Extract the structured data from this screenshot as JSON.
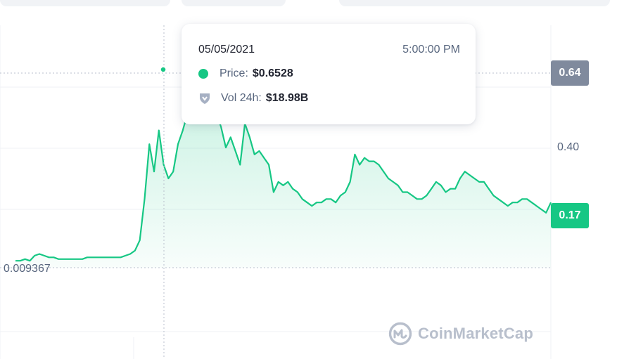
{
  "chart_data": {
    "type": "area",
    "x_range": [
      "2021-02-01",
      "2021-07-31"
    ],
    "ylim": [
      0.0,
      0.78
    ],
    "y_ticks": [
      "0.40"
    ],
    "grid": true,
    "series": [
      {
        "values": [
          0.02,
          0.02,
          0.025,
          0.02,
          0.035,
          0.04,
          0.035,
          0.03,
          0.03,
          0.025,
          0.025,
          0.025,
          0.025,
          0.025,
          0.025,
          0.03,
          0.03,
          0.03,
          0.03,
          0.03,
          0.03,
          0.03,
          0.03,
          0.035,
          0.04,
          0.05,
          0.08,
          0.2,
          0.36,
          0.28,
          0.4,
          0.3,
          0.26,
          0.28,
          0.36,
          0.4,
          0.45,
          0.63,
          0.65,
          0.45,
          0.58,
          0.52,
          0.45,
          0.41,
          0.35,
          0.38,
          0.34,
          0.3,
          0.42,
          0.38,
          0.33,
          0.34,
          0.32,
          0.3,
          0.22,
          0.25,
          0.24,
          0.25,
          0.23,
          0.22,
          0.2,
          0.19,
          0.18,
          0.19,
          0.19,
          0.2,
          0.2,
          0.19,
          0.21,
          0.22,
          0.25,
          0.33,
          0.3,
          0.32,
          0.31,
          0.31,
          0.3,
          0.28,
          0.26,
          0.25,
          0.24,
          0.22,
          0.22,
          0.21,
          0.2,
          0.2,
          0.21,
          0.23,
          0.25,
          0.24,
          0.22,
          0.23,
          0.23,
          0.26,
          0.28,
          0.27,
          0.26,
          0.25,
          0.25,
          0.23,
          0.21,
          0.2,
          0.19,
          0.18,
          0.19,
          0.19,
          0.2,
          0.2,
          0.19,
          0.18,
          0.17,
          0.16,
          0.19
        ]
      }
    ],
    "min_label": "0.009367",
    "current_label": "0.17",
    "peak_label": "0.64",
    "tooltip": {
      "date": "05/05/2021",
      "time": "5:00:00 PM",
      "price_label": "Price:",
      "price_value": "$0.6528",
      "volume_label": "Vol 24h:",
      "volume_value": "$18.98B"
    },
    "watermark": "CoinMarketCap",
    "colors": {
      "line": "#16c784",
      "fill_top": "#16c784",
      "grid": "#eff2f5",
      "badge_current": "#16c784",
      "badge_peak": "#808a9d",
      "text_muted": "#58667e"
    }
  }
}
